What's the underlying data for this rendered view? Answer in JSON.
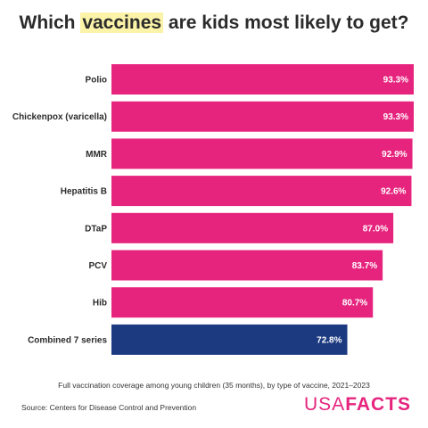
{
  "title": {
    "before": "Which ",
    "highlight": "vaccines",
    "after": " are kids most likely to get?"
  },
  "footer": {
    "subtitle": "Full vaccination coverage among young children (35 months), by type of vaccine, 2021–2023",
    "source": "Source: Centers for Disease Control and Prevention",
    "logo_usa": "USA",
    "logo_facts": "FACTS"
  },
  "colors": {
    "bar": "#e6247e",
    "highlight_bar": "#1b3a80",
    "title_highlight": "#fbf3a8"
  },
  "chart_data": {
    "type": "bar",
    "orientation": "horizontal",
    "categories": [
      "Polio",
      "Chickenpox (varicella)",
      "MMR",
      "Hepatitis B",
      "DTaP",
      "PCV",
      "Hib",
      "Combined 7 series"
    ],
    "values": [
      93.3,
      93.3,
      92.9,
      92.6,
      87.0,
      83.7,
      80.7,
      72.8
    ],
    "value_labels": [
      "93.3%",
      "93.3%",
      "92.9%",
      "92.6%",
      "87.0%",
      "83.7%",
      "80.7%",
      "72.8%"
    ],
    "highlighted_category": "Combined 7 series",
    "xlim": [
      0,
      93.3
    ],
    "grid": false,
    "legend": "none"
  }
}
